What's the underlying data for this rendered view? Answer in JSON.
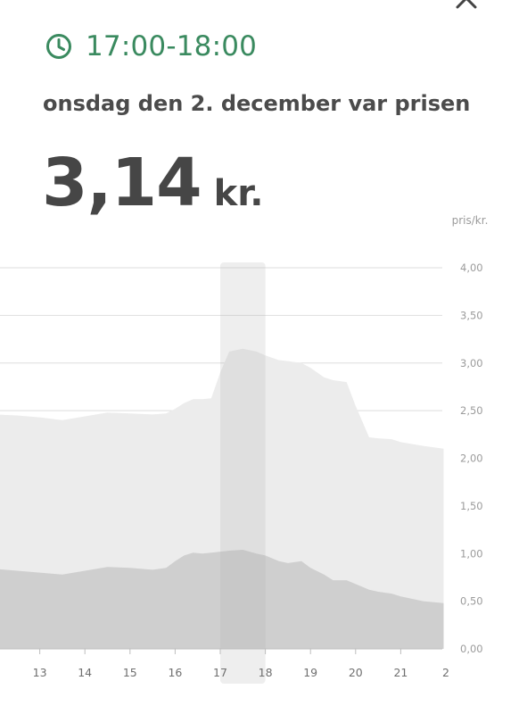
{
  "header": {
    "time_range": "17:00-18:00",
    "date_text": "onsdag den 2. december var prisen",
    "price_value": "3,14",
    "price_unit": "kr."
  },
  "icons": {
    "clock": "clock-icon",
    "close": "close-icon"
  },
  "colors": {
    "accent": "#3a8a5f",
    "total_area": "#ececec",
    "base_area": "#cfcfcf",
    "highlight": "#d9d9d9"
  },
  "chart_data": {
    "type": "area",
    "ylabel": "pris/kr.",
    "ylim": [
      0,
      4
    ],
    "yticks": [
      "0,00",
      "0,50",
      "1,00",
      "1,50",
      "2,00",
      "2,50",
      "3,00",
      "3,50",
      "4,00"
    ],
    "xticks": [
      "13",
      "14",
      "15",
      "16",
      "17",
      "18",
      "19",
      "20",
      "21",
      "2"
    ],
    "grid": true,
    "highlight_hour": [
      17,
      18
    ],
    "series": [
      {
        "x": [
          12.0,
          12.5,
          13.0,
          13.5,
          14.0,
          14.5,
          15.0,
          15.5,
          15.8,
          16.0,
          16.2,
          16.4,
          16.6,
          16.8,
          17.0,
          17.2,
          17.5,
          17.8,
          18.0,
          18.3,
          18.5,
          18.8,
          19.0,
          19.3,
          19.5,
          19.8,
          20.0,
          20.3,
          20.5,
          20.8,
          21.0,
          21.5,
          21.95
        ],
        "y": [
          2.46,
          2.45,
          2.43,
          2.4,
          2.44,
          2.48,
          2.47,
          2.46,
          2.47,
          2.52,
          2.58,
          2.62,
          2.62,
          2.63,
          2.9,
          3.12,
          3.15,
          3.12,
          3.08,
          3.03,
          3.02,
          3.0,
          2.95,
          2.85,
          2.82,
          2.8,
          2.55,
          2.22,
          2.21,
          2.2,
          2.17,
          2.13,
          2.1
        ]
      },
      {
        "x": [
          12.0,
          12.5,
          13.0,
          13.5,
          14.0,
          14.5,
          15.0,
          15.5,
          15.8,
          16.0,
          16.2,
          16.4,
          16.6,
          16.8,
          17.0,
          17.2,
          17.5,
          17.8,
          18.0,
          18.3,
          18.5,
          18.8,
          19.0,
          19.3,
          19.5,
          19.8,
          20.0,
          20.3,
          20.5,
          20.8,
          21.0,
          21.5,
          21.95
        ],
        "y": [
          0.84,
          0.82,
          0.8,
          0.78,
          0.82,
          0.86,
          0.85,
          0.83,
          0.85,
          0.92,
          0.98,
          1.01,
          1.0,
          1.01,
          1.02,
          1.03,
          1.04,
          1.0,
          0.98,
          0.92,
          0.9,
          0.92,
          0.85,
          0.78,
          0.72,
          0.72,
          0.68,
          0.62,
          0.6,
          0.58,
          0.55,
          0.5,
          0.48
        ]
      }
    ]
  }
}
